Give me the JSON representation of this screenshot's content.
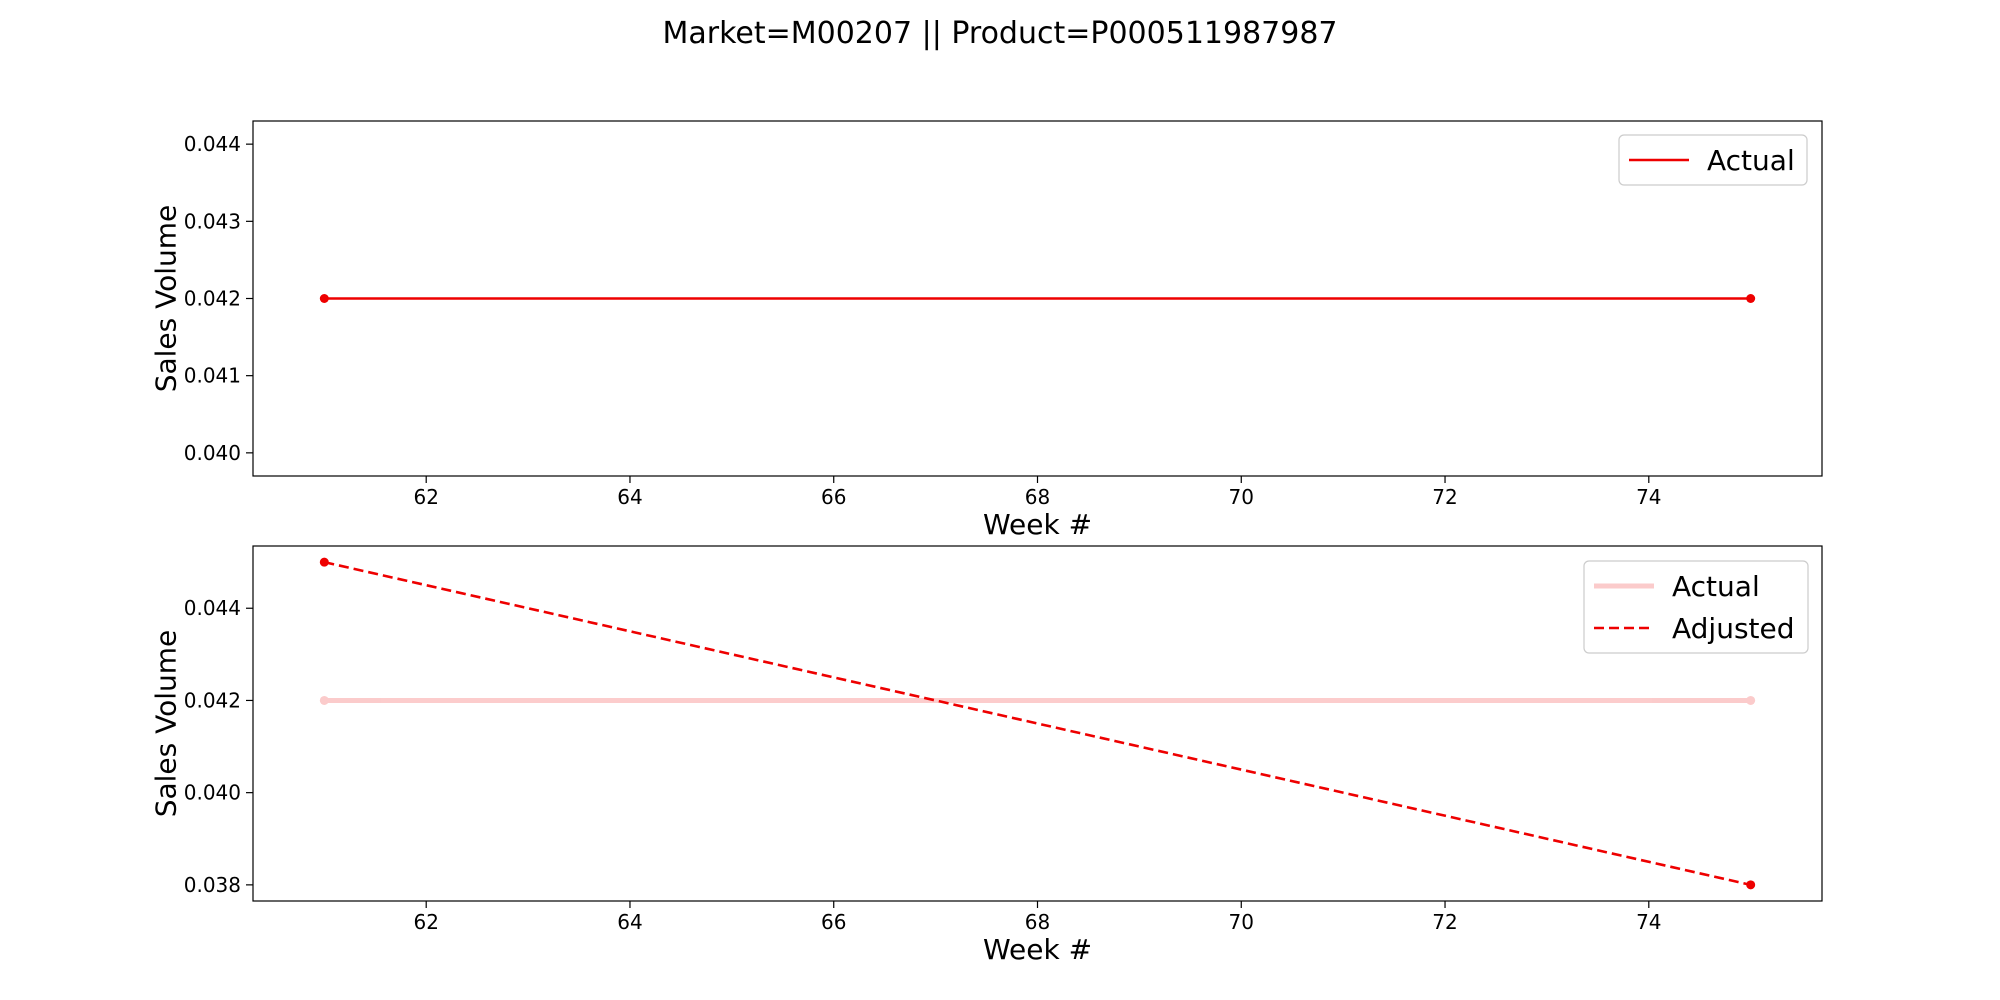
{
  "figure": {
    "title": "Market=M00207 || Product=P000511987987"
  },
  "chart_data": [
    {
      "type": "line",
      "xlabel": "Week #",
      "ylabel": "Sales Volume",
      "xlim": [
        60.3,
        75.7
      ],
      "ylim": [
        0.0397,
        0.0443
      ],
      "xticks": [
        62,
        64,
        66,
        68,
        70,
        72,
        74
      ],
      "yticks": [
        0.04,
        0.041,
        0.042,
        0.043,
        0.044
      ],
      "ytick_decimals": 3,
      "grid": false,
      "legend_position": "top-right",
      "series": [
        {
          "name": "Actual",
          "x": [
            61,
            75
          ],
          "y": [
            0.042,
            0.042
          ],
          "color": "#ee0000",
          "opacity": 1,
          "linestyle": "solid",
          "marker": "circle"
        }
      ]
    },
    {
      "type": "line",
      "xlabel": "Week #",
      "ylabel": "Sales Volume",
      "xlim": [
        60.3,
        75.7
      ],
      "ylim": [
        0.03765,
        0.04535
      ],
      "xticks": [
        62,
        64,
        66,
        68,
        70,
        72,
        74
      ],
      "yticks": [
        0.038,
        0.04,
        0.042,
        0.044
      ],
      "ytick_decimals": 3,
      "grid": false,
      "legend_position": "top-right",
      "series": [
        {
          "name": "Actual",
          "x": [
            61,
            75
          ],
          "y": [
            0.042,
            0.042
          ],
          "color": "#ee0000",
          "opacity": 0.2,
          "linestyle": "solid",
          "marker": "circle"
        },
        {
          "name": "Adjusted",
          "x": [
            61,
            75
          ],
          "y": [
            0.045,
            0.038
          ],
          "color": "#ee0000",
          "opacity": 1,
          "linestyle": "dashed",
          "marker": "circle"
        }
      ]
    }
  ]
}
